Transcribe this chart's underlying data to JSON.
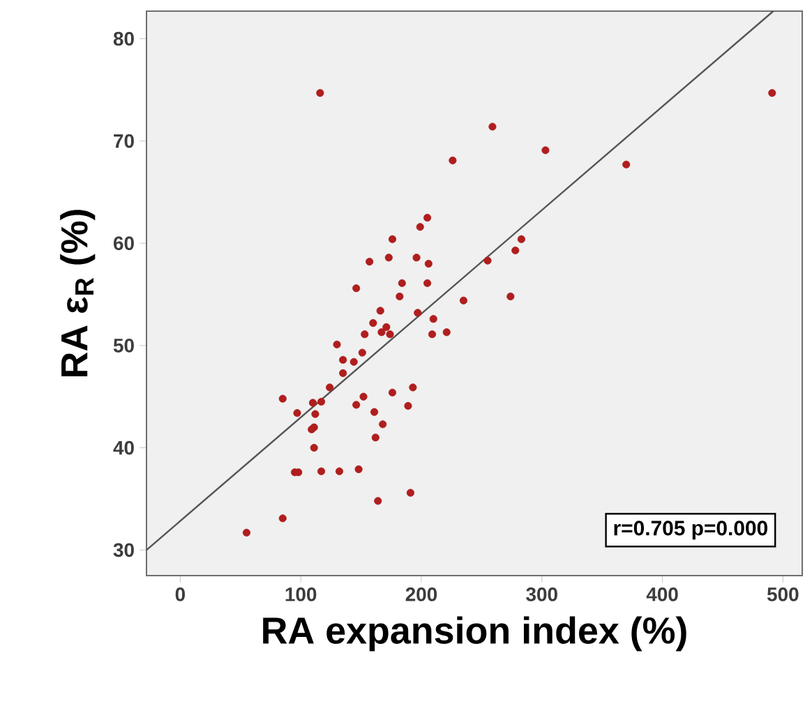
{
  "chart_data": {
    "type": "scatter",
    "xlabel": "RA expansion index (%)",
    "ylabel": "RA ε$_{R}$ (%)",
    "xlim": [
      -28,
      516
    ],
    "ylim": [
      27.5,
      82.7
    ],
    "xticks": [
      0,
      100,
      200,
      300,
      400,
      500
    ],
    "yticks": [
      30,
      40,
      50,
      60,
      70,
      80
    ],
    "grid": false,
    "marker": "circle",
    "annotations": [
      "r=0.705  p=0.000"
    ],
    "series": [
      {
        "color": "#b01e1e",
        "x": [
          116,
          226,
          205,
          199,
          176,
          157,
          173,
          196,
          206,
          184,
          205,
          146,
          182,
          235,
          259,
          303,
          370,
          491,
          283,
          278,
          255,
          274,
          221,
          197,
          166,
          160,
          171,
          167,
          174,
          153,
          210,
          209,
          130,
          151,
          135,
          144,
          135,
          124,
          85,
          110,
          117,
          152,
          146,
          176,
          193,
          189,
          97,
          112,
          161,
          168,
          111,
          109,
          162,
          111,
          95,
          98,
          117,
          132,
          148,
          191,
          164,
          85,
          55
        ],
        "values": [
          74.7,
          68.1,
          62.5,
          61.6,
          60.4,
          58.2,
          58.6,
          58.6,
          58.0,
          56.1,
          56.1,
          55.6,
          54.8,
          54.4,
          71.4,
          69.1,
          67.7,
          74.7,
          60.4,
          59.3,
          58.3,
          54.8,
          51.3,
          53.2,
          53.4,
          52.2,
          51.8,
          51.3,
          51.1,
          51.1,
          52.6,
          51.1,
          50.1,
          49.3,
          48.6,
          48.4,
          47.3,
          45.9,
          44.8,
          44.4,
          44.5,
          45.0,
          44.2,
          45.4,
          45.9,
          44.1,
          43.4,
          43.3,
          43.5,
          42.3,
          42.0,
          41.8,
          41.0,
          40.0,
          37.6,
          37.6,
          37.7,
          37.7,
          37.9,
          35.6,
          34.8,
          33.1,
          31.7
        ]
      },
      {
        "type": "line",
        "color": "#555555",
        "marker": "none",
        "x": [
          -28,
          492
        ],
        "values": [
          30.0,
          82.7
        ]
      }
    ]
  }
}
